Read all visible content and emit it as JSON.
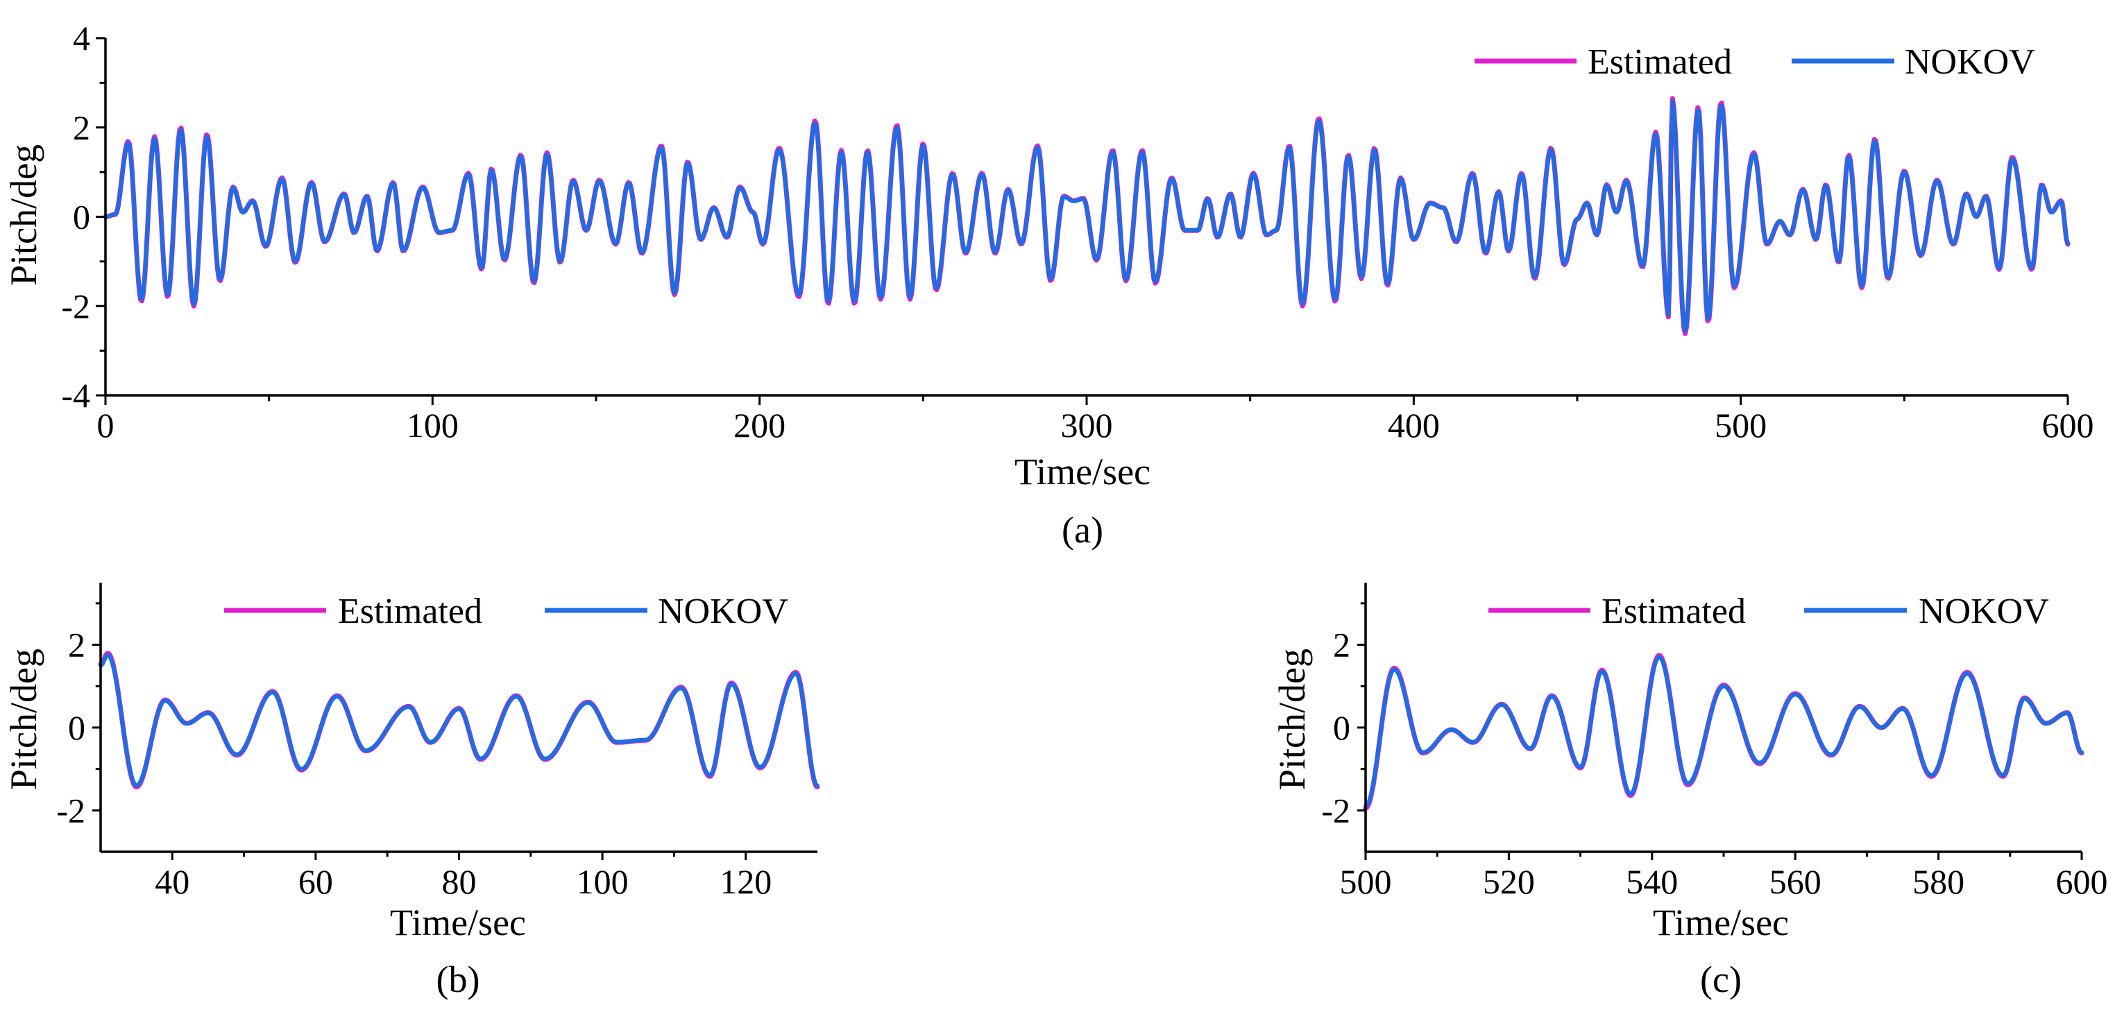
{
  "colors": {
    "estimated": "#e01fcf",
    "nokov": "#1f6de0"
  },
  "chart_data": [
    {
      "id": "a",
      "type": "line",
      "caption": "(a)",
      "xlabel": "Time/sec",
      "ylabel": "Pitch/deg",
      "xlim": [
        0,
        600
      ],
      "ylim": [
        -4,
        4
      ],
      "xticks": [
        0,
        100,
        200,
        300,
        400,
        500,
        600
      ],
      "yticks": [
        -4,
        -2,
        0,
        2,
        4
      ],
      "xtick_labels": [
        "0",
        "100",
        "200",
        "300",
        "400",
        "500",
        "600"
      ],
      "ytick_labels": [
        "-4",
        "-2",
        "0",
        "2",
        "4"
      ],
      "legend": {
        "position": "top-right",
        "entries": [
          "Estimated",
          "NOKOV"
        ]
      },
      "series": [
        {
          "name": "Estimated",
          "color_key": "estimated"
        },
        {
          "name": "NOKOV",
          "color_key": "nokov"
        }
      ],
      "peaks": [
        [
          0,
          0
        ],
        [
          3,
          0.05
        ],
        [
          7,
          1.65
        ],
        [
          11,
          -1.85
        ],
        [
          15,
          1.75
        ],
        [
          19,
          -1.75
        ],
        [
          23,
          1.95
        ],
        [
          27,
          -1.95
        ],
        [
          31,
          1.8
        ],
        [
          35,
          -1.4
        ],
        [
          39,
          0.65
        ],
        [
          42,
          0.1
        ],
        [
          45,
          0.35
        ],
        [
          49,
          -0.65
        ],
        [
          54,
          0.85
        ],
        [
          58,
          -1.0
        ],
        [
          63,
          0.75
        ],
        [
          67,
          -0.55
        ],
        [
          73,
          0.5
        ],
        [
          76,
          -0.35
        ],
        [
          80,
          0.45
        ],
        [
          83,
          -0.75
        ],
        [
          88,
          0.75
        ],
        [
          91,
          -0.75
        ],
        [
          97,
          0.65
        ],
        [
          102,
          -0.35
        ],
        [
          106,
          -0.3
        ],
        [
          111,
          0.95
        ],
        [
          115,
          -1.15
        ],
        [
          118,
          1.05
        ],
        [
          122,
          -0.95
        ],
        [
          127,
          1.35
        ],
        [
          131,
          -1.45
        ],
        [
          135,
          1.4
        ],
        [
          139,
          -1.0
        ],
        [
          143,
          0.8
        ],
        [
          147,
          -0.3
        ],
        [
          151,
          0.8
        ],
        [
          156,
          -0.6
        ],
        [
          160,
          0.75
        ],
        [
          164,
          -0.8
        ],
        [
          170,
          1.55
        ],
        [
          174,
          -1.7
        ],
        [
          178,
          1.2
        ],
        [
          182,
          -0.5
        ],
        [
          186,
          0.2
        ],
        [
          190,
          -0.45
        ],
        [
          194,
          0.65
        ],
        [
          198,
          0.1
        ],
        [
          201,
          -0.6
        ],
        [
          206,
          1.5
        ],
        [
          212,
          -1.75
        ],
        [
          217,
          2.1
        ],
        [
          221,
          -1.9
        ],
        [
          225,
          1.45
        ],
        [
          229,
          -1.9
        ],
        [
          233,
          1.45
        ],
        [
          237,
          -1.8
        ],
        [
          242,
          2.0
        ],
        [
          246,
          -1.8
        ],
        [
          250,
          1.6
        ],
        [
          254,
          -1.6
        ],
        [
          259,
          0.95
        ],
        [
          263,
          -0.8
        ],
        [
          268,
          0.95
        ],
        [
          272,
          -0.8
        ],
        [
          276,
          0.6
        ],
        [
          280,
          -0.6
        ],
        [
          285,
          1.55
        ],
        [
          289,
          -1.4
        ],
        [
          293,
          0.45
        ],
        [
          296,
          0.35
        ],
        [
          299,
          0.4
        ],
        [
          303,
          -0.95
        ],
        [
          308,
          1.45
        ],
        [
          312,
          -1.4
        ],
        [
          317,
          1.45
        ],
        [
          321,
          -1.45
        ],
        [
          326,
          0.85
        ],
        [
          330,
          -0.3
        ],
        [
          334,
          -0.3
        ],
        [
          337,
          0.4
        ],
        [
          340,
          -0.45
        ],
        [
          344,
          0.5
        ],
        [
          347,
          -0.45
        ],
        [
          351,
          0.95
        ],
        [
          355,
          -0.4
        ],
        [
          358,
          -0.3
        ],
        [
          362,
          1.55
        ],
        [
          366,
          -1.95
        ],
        [
          371,
          2.15
        ],
        [
          376,
          -1.85
        ],
        [
          380,
          1.35
        ],
        [
          384,
          -1.35
        ],
        [
          388,
          1.5
        ],
        [
          392,
          -1.5
        ],
        [
          396,
          0.85
        ],
        [
          400,
          -0.5
        ],
        [
          405,
          0.3
        ],
        [
          409,
          0.2
        ],
        [
          413,
          -0.55
        ],
        [
          418,
          0.95
        ],
        [
          422,
          -0.8
        ],
        [
          426,
          0.55
        ],
        [
          429,
          -0.75
        ],
        [
          433,
          0.95
        ],
        [
          437,
          -1.35
        ],
        [
          442,
          1.5
        ],
        [
          446,
          -1.05
        ],
        [
          450,
          -0.05
        ],
        [
          453,
          0.3
        ],
        [
          456,
          -0.4
        ],
        [
          459,
          0.7
        ],
        [
          462,
          0.1
        ],
        [
          465,
          0.8
        ],
        [
          470,
          -1.1
        ],
        [
          474,
          1.85
        ],
        [
          478,
          -2.2
        ],
        [
          479,
          2.6
        ],
        [
          483,
          -2.55
        ],
        [
          487,
          2.4
        ],
        [
          490,
          -2.3
        ],
        [
          494,
          2.5
        ],
        [
          498,
          -1.55
        ],
        [
          504,
          1.4
        ],
        [
          508,
          -0.6
        ],
        [
          512,
          -0.1
        ],
        [
          515,
          -0.4
        ],
        [
          519,
          0.6
        ],
        [
          523,
          -0.5
        ],
        [
          526,
          0.7
        ],
        [
          530,
          -1.0
        ],
        [
          533,
          1.35
        ],
        [
          537,
          -1.55
        ],
        [
          541,
          1.7
        ],
        [
          545,
          -1.35
        ],
        [
          550,
          1.0
        ],
        [
          555,
          -0.85
        ],
        [
          560,
          0.8
        ],
        [
          565,
          -0.6
        ],
        [
          569,
          0.5
        ],
        [
          572,
          0.0
        ],
        [
          575,
          0.45
        ],
        [
          579,
          -1.15
        ],
        [
          583,
          1.3
        ],
        [
          589,
          -1.15
        ],
        [
          592,
          0.7
        ],
        [
          595,
          0.1
        ],
        [
          598,
          0.35
        ],
        [
          600,
          -0.6
        ]
      ]
    },
    {
      "id": "b",
      "type": "line",
      "caption": "(b)",
      "xlabel": "Time/sec",
      "ylabel": "Pitch/deg",
      "xlim": [
        30,
        130
      ],
      "ylim": [
        -3,
        3.5
      ],
      "xticks": [
        40,
        60,
        80,
        100,
        120
      ],
      "yticks": [
        -2,
        0,
        2
      ],
      "xtick_labels": [
        "40",
        "60",
        "80",
        "100",
        "120"
      ],
      "ytick_labels": [
        "-2",
        "0",
        "2"
      ],
      "legend": {
        "position": "top-right",
        "entries": [
          "Estimated",
          "NOKOV"
        ]
      },
      "series": [
        {
          "name": "Estimated",
          "color_key": "estimated"
        },
        {
          "name": "NOKOV",
          "color_key": "nokov"
        }
      ],
      "peaks": [
        [
          30,
          1.5
        ],
        [
          31,
          1.75
        ],
        [
          35,
          -1.4
        ],
        [
          39,
          0.65
        ],
        [
          42,
          0.1
        ],
        [
          45,
          0.35
        ],
        [
          49,
          -0.65
        ],
        [
          54,
          0.85
        ],
        [
          58,
          -1.0
        ],
        [
          63,
          0.75
        ],
        [
          67,
          -0.55
        ],
        [
          73,
          0.5
        ],
        [
          76,
          -0.35
        ],
        [
          80,
          0.45
        ],
        [
          83,
          -0.75
        ],
        [
          88,
          0.75
        ],
        [
          92,
          -0.75
        ],
        [
          98,
          0.6
        ],
        [
          102,
          -0.35
        ],
        [
          106,
          -0.3
        ],
        [
          111,
          0.95
        ],
        [
          115,
          -1.15
        ],
        [
          118,
          1.05
        ],
        [
          122,
          -0.95
        ],
        [
          127,
          1.3
        ],
        [
          130,
          -1.4
        ]
      ]
    },
    {
      "id": "c",
      "type": "line",
      "caption": "(c)",
      "xlabel": "Time/sec",
      "ylabel": "Pitch/deg",
      "xlim": [
        500,
        600
      ],
      "ylim": [
        -3,
        3.5
      ],
      "xticks": [
        500,
        520,
        540,
        560,
        580,
        600
      ],
      "yticks": [
        -2,
        0,
        2
      ],
      "xtick_labels": [
        "500",
        "520",
        "540",
        "560",
        "580",
        "600"
      ],
      "ytick_labels": [
        "-2",
        "0",
        "2"
      ],
      "legend": {
        "position": "top-right",
        "entries": [
          "Estimated",
          "NOKOV"
        ]
      },
      "series": [
        {
          "name": "Estimated",
          "color_key": "estimated"
        },
        {
          "name": "NOKOV",
          "color_key": "nokov"
        }
      ],
      "peaks": [
        [
          500,
          -1.9
        ],
        [
          504,
          1.4
        ],
        [
          508,
          -0.6
        ],
        [
          512,
          -0.05
        ],
        [
          515,
          -0.35
        ],
        [
          519,
          0.55
        ],
        [
          523,
          -0.5
        ],
        [
          526,
          0.75
        ],
        [
          530,
          -0.95
        ],
        [
          533,
          1.35
        ],
        [
          537,
          -1.6
        ],
        [
          541,
          1.7
        ],
        [
          545,
          -1.35
        ],
        [
          550,
          1.0
        ],
        [
          555,
          -0.85
        ],
        [
          560,
          0.8
        ],
        [
          565,
          -0.65
        ],
        [
          569,
          0.5
        ],
        [
          572,
          0.0
        ],
        [
          575,
          0.45
        ],
        [
          579,
          -1.15
        ],
        [
          584,
          1.3
        ],
        [
          589,
          -1.15
        ],
        [
          592,
          0.7
        ],
        [
          595,
          0.1
        ],
        [
          598,
          0.35
        ],
        [
          600,
          -0.6
        ]
      ]
    }
  ]
}
